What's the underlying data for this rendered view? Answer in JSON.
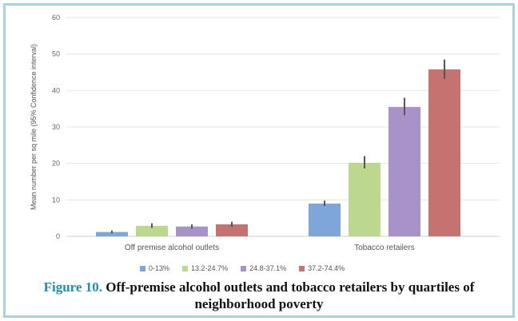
{
  "chart_data": {
    "type": "bar",
    "title": "",
    "xlabel": "",
    "ylabel": "Mean number per sq mile (95% Confidence interval)",
    "ylim": [
      0,
      60
    ],
    "yticks": [
      0,
      10,
      20,
      30,
      40,
      50,
      60
    ],
    "grid": true,
    "legend_position": "bottom",
    "categories": [
      "Off premise alcohol outlets",
      "Tobacco retailers"
    ],
    "series": [
      {
        "name": "0-13%",
        "color": "#7fa6d8",
        "values": [
          1.2,
          9.0
        ],
        "ci": [
          [
            0.8,
            1.6
          ],
          [
            8.3,
            9.8
          ]
        ]
      },
      {
        "name": "13.2-24.7%",
        "color": "#bcd88f",
        "values": [
          2.9,
          20.2
        ],
        "ci": [
          [
            2.3,
            3.6
          ],
          [
            18.6,
            22.0
          ]
        ]
      },
      {
        "name": "24.8-37.1%",
        "color": "#a893c9",
        "values": [
          2.7,
          35.5
        ],
        "ci": [
          [
            2.1,
            3.3
          ],
          [
            33.2,
            38.0
          ]
        ]
      },
      {
        "name": "37.2-74.4%",
        "color": "#c57370",
        "values": [
          3.3,
          45.8
        ],
        "ci": [
          [
            2.6,
            4.0
          ],
          [
            43.2,
            48.5
          ]
        ]
      }
    ]
  },
  "caption": {
    "lead": "Figure 10.",
    "text": "Off-premise alcohol outlets and tobacco retailers by quartiles of neighborhood poverty"
  }
}
